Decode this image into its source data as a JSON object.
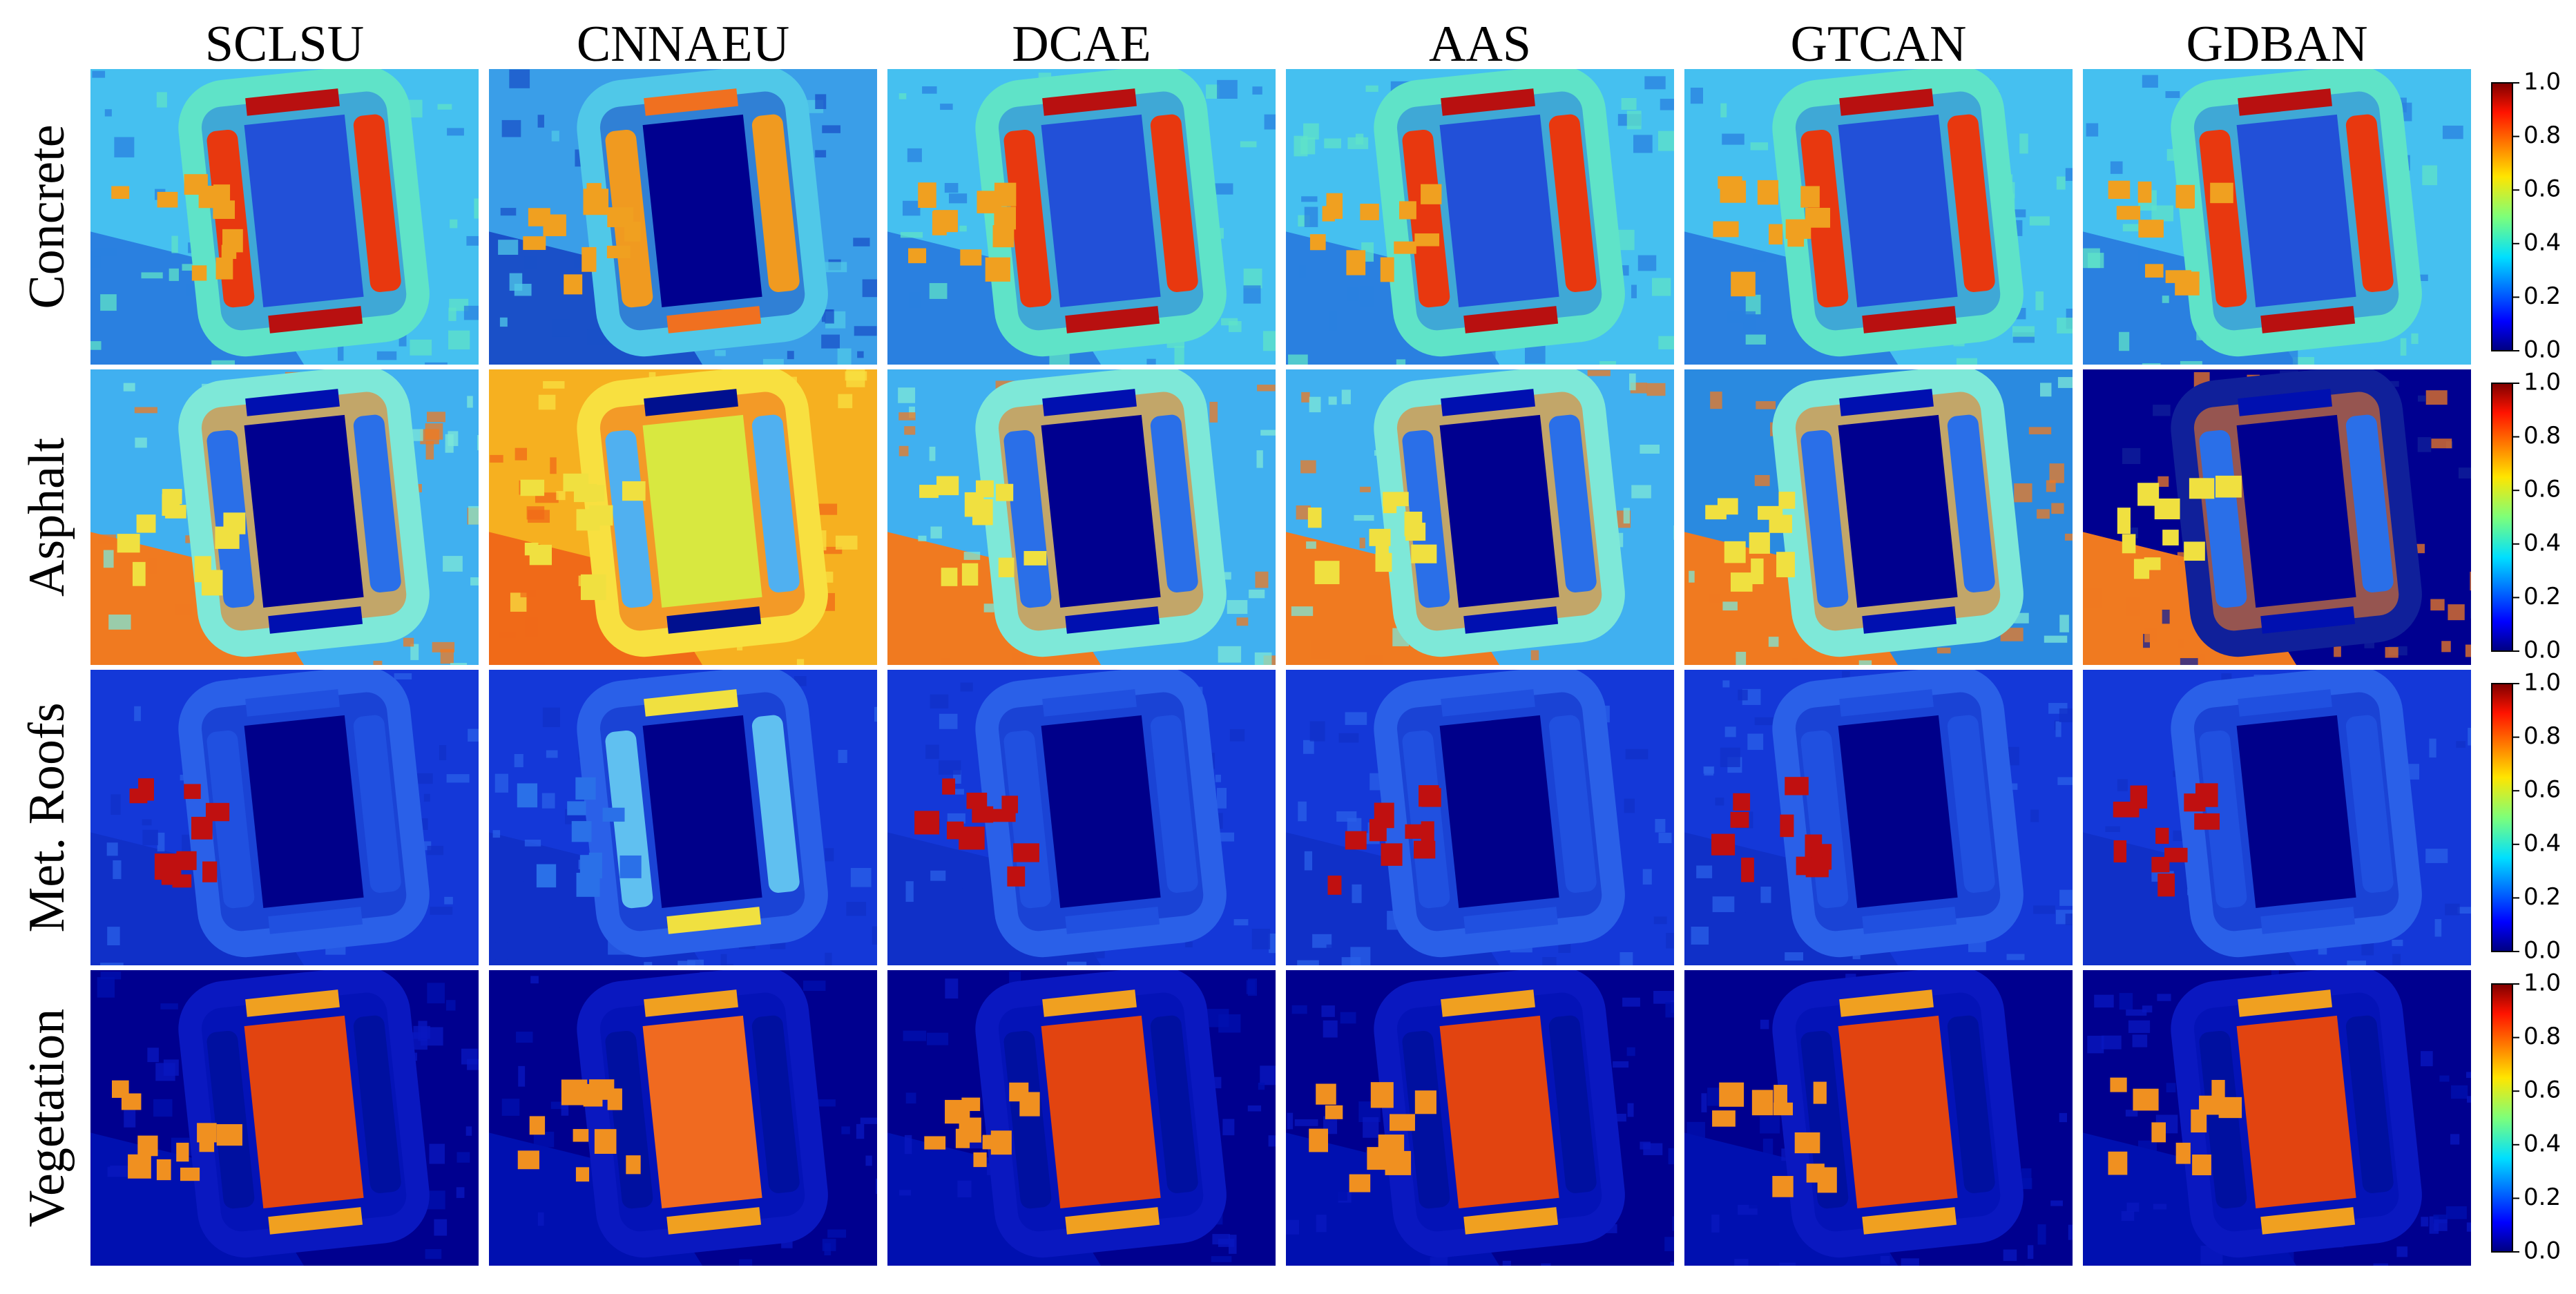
{
  "columns": [
    "SCLSU",
    "CNNAEU",
    "DCAE",
    "AAS",
    "GTCAN",
    "GDBAN"
  ],
  "rows": [
    "Concrete",
    "Asphalt",
    "Met. Roofs",
    "Vegetation"
  ],
  "colorbar": {
    "ylim": [
      0,
      1
    ],
    "yticks": [
      {
        "value": 0,
        "label": "0.0"
      },
      {
        "value": 0.2,
        "label": "0.2"
      },
      {
        "value": 0.4,
        "label": "0.4"
      },
      {
        "value": 0.6,
        "label": "0.6"
      },
      {
        "value": 0.8,
        "label": "0.8"
      },
      {
        "value": 1,
        "label": "1.0"
      }
    ]
  }
}
